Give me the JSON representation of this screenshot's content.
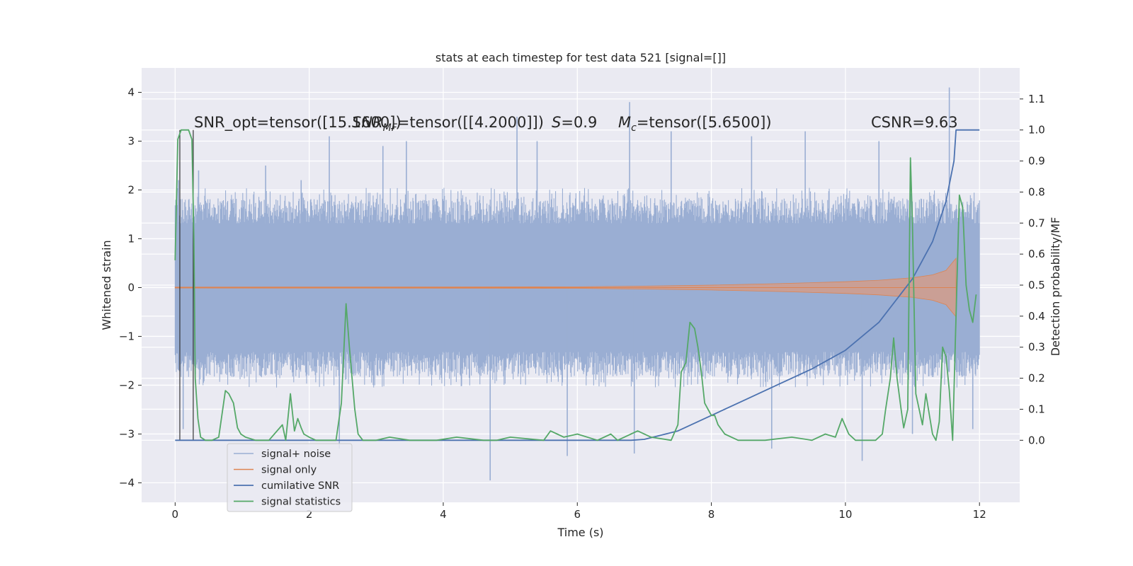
{
  "chart_data": {
    "type": "line",
    "title": "stats at each timestep for test data 521 [signal=[]]",
    "xlabel": "Time (s)",
    "ylabel_left": "Whitened strain",
    "ylabel_right": "Detection probability/MF",
    "xlim": [
      -0.5,
      12.6
    ],
    "ylim_left": [
      -4.4,
      4.5
    ],
    "ylim_right": [
      -0.2,
      1.2
    ],
    "xticks": [
      0,
      2,
      4,
      6,
      8,
      10,
      12
    ],
    "yticks_left": [
      -4,
      -3,
      -2,
      -1,
      0,
      1,
      2,
      3,
      4
    ],
    "yticks_right": [
      0.0,
      0.1,
      0.2,
      0.3,
      0.4,
      0.5,
      0.6,
      0.7,
      0.8,
      0.9,
      1.0,
      1.1
    ],
    "grid": true,
    "legend_placement": "lower-left",
    "vertical_lines_x": [
      0.07,
      0.27
    ],
    "annotations": [
      {
        "text": "SNR_opt=tensor([15.1600])",
        "kind": "plain"
      },
      {
        "main": "SNR",
        "sub": "MF",
        "rest": "=tensor([[4.2000]])",
        "kind": "sub"
      },
      {
        "main": "S",
        "sub": "",
        "rest": "=0.9",
        "kind": "italic"
      },
      {
        "main": "M",
        "sub": "c",
        "rest": "=tensor([5.6500])",
        "kind": "sub"
      },
      {
        "text": "CSNR=9.63",
        "kind": "plain"
      }
    ],
    "series": [
      {
        "name": "signal+ noise",
        "axis": "left",
        "style": "noise-band",
        "x_range": [
          0,
          12
        ],
        "typical_envelope": [
          -1.8,
          1.8
        ],
        "extreme_peaks": [
          {
            "x": 0.05,
            "y": 2.2
          },
          {
            "x": 0.12,
            "y": -2.9
          },
          {
            "x": 0.35,
            "y": 2.4
          },
          {
            "x": 1.35,
            "y": 2.5
          },
          {
            "x": 1.88,
            "y": 2.2
          },
          {
            "x": 2.3,
            "y": 3.1
          },
          {
            "x": 2.45,
            "y": -3.3
          },
          {
            "x": 3.1,
            "y": 2.9
          },
          {
            "x": 3.45,
            "y": 3.0
          },
          {
            "x": 4.7,
            "y": -3.95
          },
          {
            "x": 5.1,
            "y": 3.5
          },
          {
            "x": 5.4,
            "y": 3.0
          },
          {
            "x": 5.85,
            "y": -3.45
          },
          {
            "x": 6.78,
            "y": 3.8
          },
          {
            "x": 6.85,
            "y": -3.4
          },
          {
            "x": 7.4,
            "y": 3.2
          },
          {
            "x": 8.6,
            "y": 3.1
          },
          {
            "x": 8.9,
            "y": -3.3
          },
          {
            "x": 9.4,
            "y": 3.2
          },
          {
            "x": 10.25,
            "y": -3.55
          },
          {
            "x": 10.5,
            "y": 3.0
          },
          {
            "x": 11.0,
            "y": -3.0
          },
          {
            "x": 11.55,
            "y": 4.1
          },
          {
            "x": 11.9,
            "y": -2.9
          }
        ]
      },
      {
        "name": "signal only",
        "axis": "left",
        "style": "chirp-envelope",
        "x": [
          0,
          6,
          7,
          8,
          9,
          10,
          10.5,
          11,
          11.3,
          11.5,
          11.62,
          11.65
        ],
        "amplitude": [
          0.01,
          0.015,
          0.03,
          0.05,
          0.08,
          0.12,
          0.15,
          0.2,
          0.26,
          0.35,
          0.55,
          0.6
        ]
      },
      {
        "name": "cumilative SNR",
        "axis": "right",
        "x": [
          0,
          6.8,
          7.0,
          7.5,
          8.0,
          8.5,
          9.0,
          9.5,
          10.0,
          10.5,
          11.0,
          11.3,
          11.5,
          11.62,
          11.65,
          12.0
        ],
        "y": [
          0.0,
          0.0,
          0.003,
          0.03,
          0.08,
          0.13,
          0.18,
          0.23,
          0.29,
          0.38,
          0.52,
          0.64,
          0.77,
          0.9,
          1.0,
          1.0
        ]
      },
      {
        "name": "signal statistics",
        "axis": "right",
        "x": [
          0.0,
          0.04,
          0.09,
          0.14,
          0.2,
          0.25,
          0.28,
          0.3,
          0.34,
          0.38,
          0.45,
          0.55,
          0.65,
          0.75,
          0.8,
          0.87,
          0.93,
          0.98,
          1.05,
          1.2,
          1.4,
          1.6,
          1.65,
          1.72,
          1.78,
          1.83,
          1.88,
          1.92,
          2.0,
          2.1,
          2.2,
          2.4,
          2.48,
          2.55,
          2.6,
          2.68,
          2.73,
          2.8,
          3.0,
          3.2,
          3.5,
          3.9,
          4.2,
          4.6,
          4.8,
          5.0,
          5.5,
          5.6,
          5.7,
          5.8,
          6.0,
          6.3,
          6.5,
          6.6,
          6.8,
          6.9,
          7.1,
          7.4,
          7.5,
          7.55,
          7.62,
          7.68,
          7.75,
          7.8,
          7.85,
          7.9,
          7.95,
          8.0,
          8.05,
          8.1,
          8.2,
          8.4,
          8.8,
          9.2,
          9.5,
          9.7,
          9.85,
          9.95,
          10.05,
          10.15,
          10.3,
          10.45,
          10.55,
          10.6,
          10.67,
          10.72,
          10.77,
          10.83,
          10.87,
          10.93,
          10.97,
          11.0,
          11.05,
          11.1,
          11.15,
          11.2,
          11.3,
          11.35,
          11.4,
          11.45,
          11.5,
          11.55,
          11.6,
          11.65,
          11.7,
          11.75,
          11.8,
          11.85,
          11.9,
          11.95
        ],
        "y": [
          0.58,
          0.97,
          1.0,
          1.0,
          1.0,
          0.97,
          0.65,
          0.2,
          0.07,
          0.01,
          0.0,
          0.0,
          0.01,
          0.16,
          0.15,
          0.12,
          0.04,
          0.02,
          0.01,
          0.0,
          0.0,
          0.05,
          0.0,
          0.15,
          0.03,
          0.07,
          0.04,
          0.02,
          0.01,
          0.0,
          0.0,
          0.0,
          0.12,
          0.44,
          0.3,
          0.1,
          0.02,
          0.0,
          0.0,
          0.01,
          0.0,
          0.0,
          0.01,
          0.0,
          0.0,
          0.01,
          0.0,
          0.03,
          0.02,
          0.01,
          0.02,
          0.0,
          0.02,
          0.0,
          0.02,
          0.03,
          0.01,
          0.0,
          0.05,
          0.22,
          0.25,
          0.38,
          0.36,
          0.3,
          0.22,
          0.12,
          0.1,
          0.08,
          0.08,
          0.05,
          0.02,
          0.0,
          0.0,
          0.01,
          0.0,
          0.02,
          0.01,
          0.07,
          0.02,
          0.0,
          0.0,
          0.0,
          0.02,
          0.1,
          0.2,
          0.33,
          0.2,
          0.1,
          0.04,
          0.1,
          0.91,
          0.7,
          0.15,
          0.1,
          0.05,
          0.15,
          0.02,
          0.0,
          0.06,
          0.3,
          0.27,
          0.16,
          0.0,
          0.4,
          0.79,
          0.75,
          0.5,
          0.42,
          0.38,
          0.47
        ]
      }
    ]
  }
}
